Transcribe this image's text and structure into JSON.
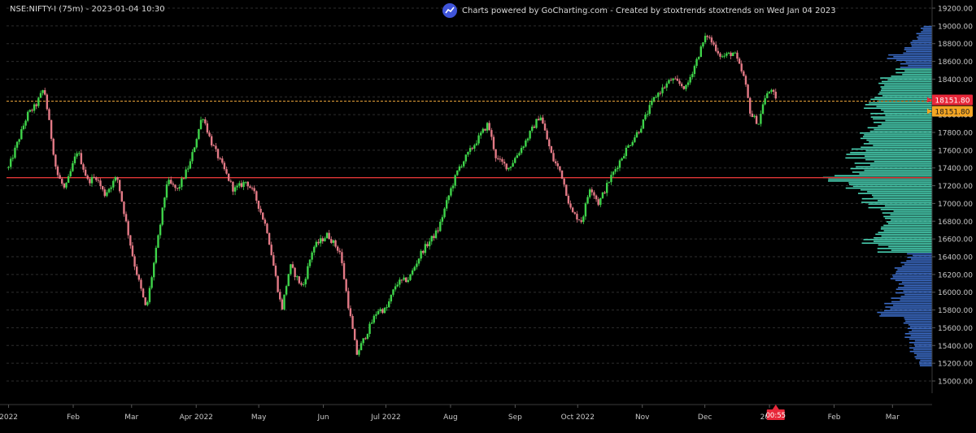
{
  "header": {
    "symbol_label": "NSE:NIFTY-I (75m) - 2023-01-04 10:30",
    "credit": "Charts powered by GoCharting.com - Created by stoxtrends stoxtrends on Wed Jan 04 2023",
    "logo_icon": "trend-chart-icon"
  },
  "chart_data": {
    "type": "candlestick",
    "title": "NSE:NIFTY-I (75m) - 2023-01-04 10:30",
    "y_range": [
      15000,
      19200
    ],
    "y_ticks": [
      15000,
      15200,
      15400,
      15600,
      15800,
      16000,
      16200,
      16400,
      16600,
      16800,
      17000,
      17200,
      17400,
      17600,
      17800,
      18000,
      18200,
      18400,
      18600,
      18800,
      19000,
      19200
    ],
    "y_tick_labels": [
      "15000.00",
      "15200.00",
      "15400.00",
      "15600.00",
      "15800.00",
      "16000.00",
      "16200.00",
      "16400.00",
      "16600.00",
      "16800.00",
      "17000.00",
      "17200.00",
      "17400.00",
      "17600.00",
      "17800.00",
      "18000.00",
      "18200.00",
      "18400.00",
      "18600.00",
      "18800.00",
      "19000.00",
      "19200.00"
    ],
    "x_labels": [
      {
        "label": "2022",
        "date": "2022-01-01"
      },
      {
        "label": "Feb",
        "date": "2022-02-01"
      },
      {
        "label": "Mar",
        "date": "2022-03-01"
      },
      {
        "label": "Apr 2022",
        "date": "2022-04-01"
      },
      {
        "label": "May",
        "date": "2022-05-01"
      },
      {
        "label": "Jun",
        "date": "2022-06-01"
      },
      {
        "label": "Jul 2022",
        "date": "2022-07-01"
      },
      {
        "label": "Aug",
        "date": "2022-08-01"
      },
      {
        "label": "Sep",
        "date": "2022-09-01"
      },
      {
        "label": "Oct 2022",
        "date": "2022-10-01"
      },
      {
        "label": "Nov",
        "date": "2022-11-01"
      },
      {
        "label": "Dec",
        "date": "2022-12-01"
      },
      {
        "label": "2023",
        "date": "2023-01-01"
      },
      {
        "label": "Feb",
        "date": "2023-02-01"
      },
      {
        "label": "Mar",
        "date": "2023-03-01"
      }
    ],
    "x_range": [
      "2021-12-31",
      "2023-03-20"
    ],
    "grid": "horizontal dashed",
    "price_path": [
      [
        "2022-01-01",
        17400
      ],
      [
        "2022-01-10",
        18000
      ],
      [
        "2022-01-14",
        18100
      ],
      [
        "2022-01-18",
        18300
      ],
      [
        "2022-01-24",
        17350
      ],
      [
        "2022-01-28",
        17150
      ],
      [
        "2022-02-03",
        17600
      ],
      [
        "2022-02-08",
        17250
      ],
      [
        "2022-02-12",
        17300
      ],
      [
        "2022-02-16",
        17100
      ],
      [
        "2022-02-22",
        17300
      ],
      [
        "2022-02-25",
        16950
      ],
      [
        "2022-03-02",
        16350
      ],
      [
        "2022-03-08",
        15800
      ],
      [
        "2022-03-14",
        16650
      ],
      [
        "2022-03-18",
        17250
      ],
      [
        "2022-03-23",
        17150
      ],
      [
        "2022-03-29",
        17450
      ],
      [
        "2022-04-04",
        18000
      ],
      [
        "2022-04-08",
        17700
      ],
      [
        "2022-04-13",
        17450
      ],
      [
        "2022-04-19",
        17150
      ],
      [
        "2022-04-25",
        17250
      ],
      [
        "2022-04-29",
        17100
      ],
      [
        "2022-05-05",
        16700
      ],
      [
        "2022-05-12",
        15800
      ],
      [
        "2022-05-16",
        16300
      ],
      [
        "2022-05-22",
        16050
      ],
      [
        "2022-05-27",
        16500
      ],
      [
        "2022-06-03",
        16650
      ],
      [
        "2022-06-09",
        16450
      ],
      [
        "2022-06-13",
        15850
      ],
      [
        "2022-06-17",
        15300
      ],
      [
        "2022-06-22",
        15550
      ],
      [
        "2022-06-27",
        15800
      ],
      [
        "2022-07-01",
        15800
      ],
      [
        "2022-07-06",
        16100
      ],
      [
        "2022-07-12",
        16150
      ],
      [
        "2022-07-18",
        16450
      ],
      [
        "2022-07-26",
        16700
      ],
      [
        "2022-08-01",
        17150
      ],
      [
        "2022-08-05",
        17400
      ],
      [
        "2022-08-12",
        17650
      ],
      [
        "2022-08-19",
        17900
      ],
      [
        "2022-08-23",
        17500
      ],
      [
        "2022-08-29",
        17400
      ],
      [
        "2022-09-06",
        17700
      ],
      [
        "2022-09-13",
        18000
      ],
      [
        "2022-09-19",
        17500
      ],
      [
        "2022-09-23",
        17350
      ],
      [
        "2022-09-28",
        16900
      ],
      [
        "2022-10-03",
        16800
      ],
      [
        "2022-10-07",
        17200
      ],
      [
        "2022-10-11",
        17000
      ],
      [
        "2022-10-17",
        17300
      ],
      [
        "2022-10-24",
        17600
      ],
      [
        "2022-10-31",
        17850
      ],
      [
        "2022-11-07",
        18200
      ],
      [
        "2022-11-15",
        18400
      ],
      [
        "2022-11-22",
        18300
      ],
      [
        "2022-11-30",
        18800
      ],
      [
        "2022-12-02",
        18900
      ],
      [
        "2022-12-09",
        18650
      ],
      [
        "2022-12-15",
        18700
      ],
      [
        "2022-12-20",
        18400
      ],
      [
        "2022-12-23",
        18000
      ],
      [
        "2022-12-27",
        17900
      ],
      [
        "2022-12-29",
        18150
      ],
      [
        "2023-01-02",
        18300
      ],
      [
        "2023-01-04",
        18151.8
      ]
    ],
    "horizontal_lines": [
      {
        "value": 17290,
        "color": "#e23636",
        "style": "solid"
      },
      {
        "value": 18151.8,
        "color": "#e8a23a",
        "style": "dashed"
      }
    ],
    "price_labels": [
      {
        "text": "18151.80",
        "color": "#e8283a"
      },
      {
        "text": "18151.80",
        "color": "#f5a623"
      }
    ],
    "time_badge": {
      "text": "00:55",
      "color": "#e8283a"
    },
    "volume_profile": {
      "poc": 17290,
      "value_area": [
        16480,
        18480
      ],
      "colors": {
        "value_area": "#4ee0c0",
        "outside": "#3f73d4"
      },
      "levels": [
        [
          15200,
          0.12
        ],
        [
          15280,
          0.16
        ],
        [
          15360,
          0.2
        ],
        [
          15440,
          0.2
        ],
        [
          15520,
          0.24
        ],
        [
          15600,
          0.22
        ],
        [
          15680,
          0.26
        ],
        [
          15760,
          0.5
        ],
        [
          15840,
          0.42
        ],
        [
          15920,
          0.36
        ],
        [
          16000,
          0.32
        ],
        [
          16080,
          0.3
        ],
        [
          16160,
          0.38
        ],
        [
          16240,
          0.34
        ],
        [
          16320,
          0.28
        ],
        [
          16400,
          0.22
        ],
        [
          16480,
          0.48
        ],
        [
          16560,
          0.62
        ],
        [
          16640,
          0.52
        ],
        [
          16720,
          0.48
        ],
        [
          16800,
          0.42
        ],
        [
          16880,
          0.44
        ],
        [
          16960,
          0.56
        ],
        [
          17040,
          0.62
        ],
        [
          17120,
          0.66
        ],
        [
          17200,
          0.78
        ],
        [
          17280,
          1.0
        ],
        [
          17360,
          0.72
        ],
        [
          17440,
          0.68
        ],
        [
          17520,
          0.76
        ],
        [
          17600,
          0.72
        ],
        [
          17680,
          0.62
        ],
        [
          17760,
          0.66
        ],
        [
          17840,
          0.58
        ],
        [
          17920,
          0.52
        ],
        [
          18000,
          0.54
        ],
        [
          18080,
          0.6
        ],
        [
          18160,
          0.56
        ],
        [
          18240,
          0.5
        ],
        [
          18320,
          0.48
        ],
        [
          18400,
          0.46
        ],
        [
          18480,
          0.32
        ],
        [
          18560,
          0.28
        ],
        [
          18640,
          0.4
        ],
        [
          18720,
          0.26
        ],
        [
          18800,
          0.2
        ],
        [
          18880,
          0.14
        ],
        [
          18960,
          0.1
        ]
      ]
    }
  }
}
